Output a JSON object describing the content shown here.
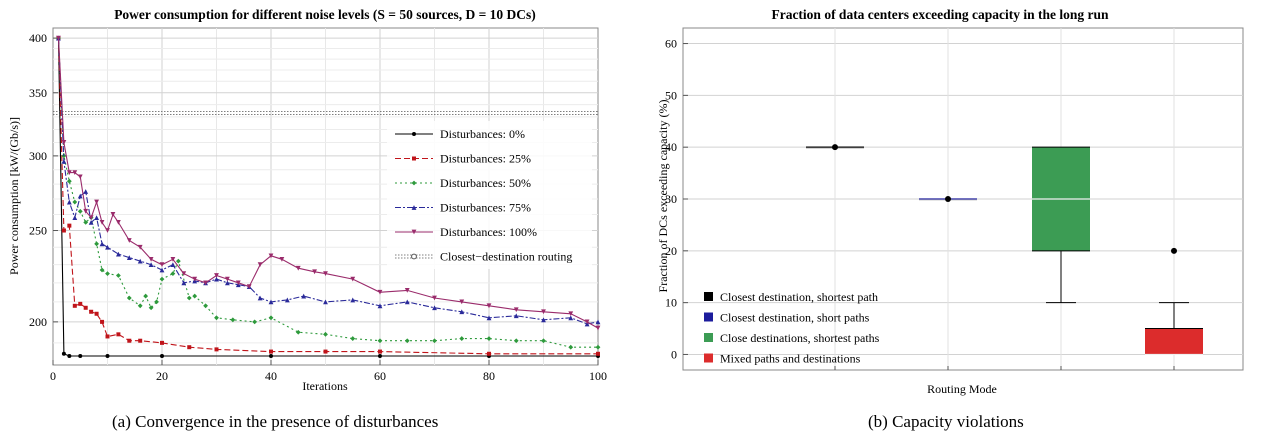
{
  "left_chart": {
    "title": "Power consumption for different noise levels (S = 50 sources, D = 10 DCs)",
    "xlabel": "Iterations",
    "ylabel": "Power consumption  [kW/(Gb/s)]",
    "x_ticks": [
      "0",
      "20",
      "40",
      "60",
      "80",
      "100"
    ],
    "y_ticks": [
      "200",
      "250",
      "300",
      "350",
      "400"
    ],
    "caption": "(a)  Convergence in the presence of disturbances"
  },
  "right_chart": {
    "title": "Fraction of data centers exceeding capacity in the long run",
    "xlabel": "Routing Mode",
    "ylabel": "Fraction of DCs exceeding capacity  (%)",
    "y_ticks": [
      "0",
      "10",
      "20",
      "30",
      "40",
      "50",
      "60"
    ],
    "caption": "(b)  Capacity violations"
  },
  "colors": {
    "d0": "#000000",
    "d25": "#c0141a",
    "d50": "#2e9a3c",
    "d75": "#2a2a9a",
    "d100": "#9a2b6b",
    "closest": "#555555",
    "box_black": "#000000",
    "box_blue": "#1c1c9c",
    "box_green": "#3c9c54",
    "box_red": "#dc2c2c"
  },
  "chart_data": [
    {
      "type": "line",
      "title": "Power consumption for different noise levels (S = 50 sources, D = 10 DCs)",
      "xlabel": "Iterations",
      "ylabel": "Power consumption  [kW/(Gb/s)]",
      "xlim": [
        0,
        100
      ],
      "ylim": [
        180,
        410
      ],
      "y_scale": "log",
      "grid": true,
      "legend_position": "right",
      "series": [
        {
          "name": "Disturbances: 0%",
          "color": "#000000",
          "dash": "",
          "marker": "circle",
          "x": [
            1,
            2,
            3,
            5,
            10,
            20,
            40,
            60,
            80,
            100
          ],
          "y": [
            400,
            185,
            184,
            184,
            184,
            184,
            184,
            184,
            184,
            184
          ]
        },
        {
          "name": "Disturbances: 25%",
          "color": "#c0141a",
          "dash": "6,3",
          "marker": "square",
          "x": [
            1,
            2,
            3,
            4,
            5,
            6,
            7,
            8,
            9,
            10,
            12,
            14,
            16,
            20,
            25,
            30,
            40,
            50,
            60,
            80,
            100
          ],
          "y": [
            400,
            250,
            253,
            208,
            209,
            207,
            205,
            204,
            200,
            193,
            194,
            191,
            191,
            190,
            188,
            187,
            186,
            186,
            186,
            185,
            185
          ]
        },
        {
          "name": "Disturbances: 50%",
          "color": "#2e9a3c",
          "dash": "2,3",
          "marker": "diamond",
          "x": [
            1,
            2,
            3,
            4,
            5,
            6,
            7,
            8,
            9,
            10,
            12,
            14,
            16,
            17,
            18,
            19,
            20,
            22,
            23,
            25,
            26,
            28,
            30,
            33,
            37,
            40,
            45,
            50,
            55,
            60,
            65,
            70,
            75,
            80,
            85,
            90,
            95,
            100
          ],
          "y": [
            400,
            300,
            282,
            268,
            262,
            255,
            258,
            242,
            227,
            225,
            224,
            212,
            208,
            213,
            207,
            210,
            222,
            225,
            232,
            212,
            213,
            208,
            202,
            201,
            200,
            202,
            195,
            194,
            192,
            191,
            191,
            191,
            192,
            192,
            191,
            191,
            188,
            188
          ]
        },
        {
          "name": "Disturbances: 75%",
          "color": "#2a2a9a",
          "dash": "6,2,2,2",
          "marker": "triangle",
          "x": [
            1,
            2,
            3,
            4,
            5,
            6,
            7,
            8,
            9,
            10,
            12,
            14,
            16,
            18,
            20,
            22,
            24,
            26,
            28,
            30,
            32,
            34,
            36,
            38,
            40,
            43,
            46,
            50,
            55,
            60,
            65,
            70,
            75,
            80,
            85,
            90,
            95,
            98,
            100
          ],
          "y": [
            400,
            296,
            268,
            258,
            272,
            275,
            255,
            258,
            242,
            240,
            236,
            234,
            232,
            230,
            227,
            230,
            220,
            221,
            220,
            222,
            220,
            219,
            218,
            212,
            210,
            211,
            213,
            210,
            211,
            208,
            210,
            207,
            205,
            202,
            203,
            201,
            202,
            199,
            200
          ]
        },
        {
          "name": "Disturbances: 100%",
          "color": "#9a2b6b",
          "dash": "",
          "marker": "tri-down",
          "x": [
            1,
            2,
            3,
            4,
            5,
            6,
            7,
            8,
            9,
            10,
            11,
            12,
            14,
            16,
            18,
            20,
            22,
            24,
            26,
            28,
            30,
            32,
            34,
            36,
            38,
            40,
            42,
            45,
            48,
            50,
            55,
            60,
            65,
            70,
            75,
            80,
            85,
            90,
            95,
            98,
            100
          ],
          "y": [
            400,
            310,
            288,
            288,
            285,
            262,
            258,
            268,
            255,
            250,
            260,
            255,
            244,
            240,
            233,
            230,
            233,
            225,
            222,
            220,
            224,
            222,
            220,
            218,
            230,
            235,
            233,
            228,
            226,
            225,
            222,
            215,
            216,
            212,
            210,
            208,
            206,
            205,
            204,
            200,
            197
          ]
        },
        {
          "name": "Closest−destination routing",
          "color": "#555555",
          "dash": "2,2",
          "marker": "open-circle",
          "x": [
            0,
            100
          ],
          "y": [
            333,
            333
          ]
        }
      ]
    },
    {
      "type": "box",
      "title": "Fraction of data centers exceeding capacity in the long run",
      "xlabel": "Routing Mode",
      "ylabel": "Fraction of DCs exceeding capacity  (%)",
      "ylim": [
        -3,
        63
      ],
      "grid": true,
      "legend_position": "bottom-left",
      "series": [
        {
          "name": "Closest destination, shortest path",
          "color": "#000000",
          "min": 40,
          "q1": 40,
          "median": 40,
          "q3": 40,
          "max": 40,
          "outliers": [
            40
          ]
        },
        {
          "name": "Closest destination, short paths",
          "color": "#1c1c9c",
          "min": 30,
          "q1": 30,
          "median": 30,
          "q3": 30,
          "max": 30,
          "outliers": [
            30
          ]
        },
        {
          "name": "Close destinations, shortest paths",
          "color": "#3c9c54",
          "min": 10,
          "q1": 20,
          "median": 30,
          "q3": 40,
          "max": 40,
          "outliers": []
        },
        {
          "name": "Mixed paths and destinations",
          "color": "#dc2c2c",
          "min": 0,
          "q1": 0,
          "median": 0,
          "q3": 5,
          "max": 10,
          "outliers": [
            20
          ]
        }
      ]
    }
  ]
}
